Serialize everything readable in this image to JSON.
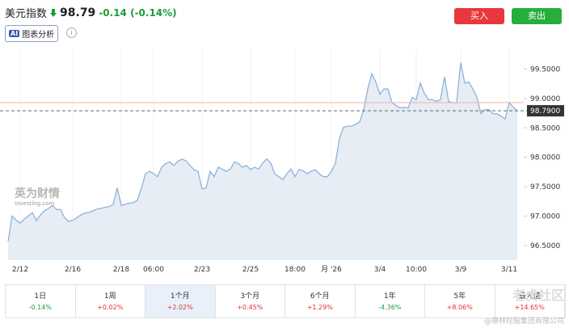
{
  "header": {
    "name": "美元指数",
    "price": "98.79",
    "change": "-0.14 (-0.14%)",
    "buy": "买入",
    "sell": "卖出",
    "ai": "AI",
    "ai_label": "图表分析",
    "info": "i"
  },
  "chart_data": {
    "type": "line",
    "values": [
      96.57,
      97.0,
      96.93,
      96.88,
      96.95,
      97.0,
      97.06,
      96.92,
      97.02,
      97.09,
      97.13,
      97.18,
      97.11,
      97.11,
      96.97,
      96.91,
      96.93,
      96.97,
      97.02,
      97.05,
      97.06,
      97.09,
      97.12,
      97.13,
      97.15,
      97.16,
      97.2,
      97.48,
      97.18,
      97.2,
      97.22,
      97.23,
      97.27,
      97.48,
      97.72,
      97.76,
      97.72,
      97.67,
      97.83,
      97.89,
      97.92,
      97.86,
      97.93,
      97.97,
      97.94,
      97.86,
      97.79,
      97.76,
      97.46,
      97.48,
      97.76,
      97.67,
      97.83,
      97.8,
      97.76,
      97.8,
      97.92,
      97.89,
      97.83,
      97.86,
      97.79,
      97.83,
      97.8,
      97.9,
      97.97,
      97.9,
      97.72,
      97.67,
      97.62,
      97.72,
      97.8,
      97.67,
      97.79,
      97.77,
      97.72,
      97.76,
      97.79,
      97.72,
      97.67,
      97.67,
      97.76,
      97.9,
      98.32,
      98.51,
      98.53,
      98.53,
      98.56,
      98.6,
      98.81,
      99.16,
      99.42,
      99.28,
      99.07,
      99.16,
      99.16,
      98.93,
      98.88,
      98.84,
      98.85,
      98.84,
      99.02,
      98.98,
      99.26,
      99.09,
      98.98,
      98.98,
      98.95,
      98.98,
      99.37,
      98.95,
      98.93,
      98.93,
      99.61,
      99.26,
      99.28,
      99.16,
      99.02,
      98.74,
      98.81,
      98.81,
      98.74,
      98.74,
      98.7,
      98.65,
      98.93,
      98.85,
      98.79
    ],
    "color": "#8fb3d9",
    "fill": "#e6edf5",
    "xlim": [
      0,
      127
    ],
    "xticks": [
      {
        "value": 3,
        "label": "2/12"
      },
      {
        "value": 16,
        "label": "2/16"
      },
      {
        "value": 28,
        "label": "2/18"
      },
      {
        "value": 36,
        "label": "06:00"
      },
      {
        "value": 48,
        "label": "2/23"
      },
      {
        "value": 60,
        "label": "2/25"
      },
      {
        "value": 71,
        "label": "18:00"
      },
      {
        "value": 80,
        "label": "月 '26"
      },
      {
        "value": 92,
        "label": "3/4"
      },
      {
        "value": 101,
        "label": "10:00"
      },
      {
        "value": 112,
        "label": "3/9"
      },
      {
        "value": 124,
        "label": "3/11"
      }
    ],
    "ylim": [
      96.25,
      99.85
    ],
    "yticks": [
      {
        "value": 96.5,
        "label": "96.5000"
      },
      {
        "value": 97,
        "label": "97.0000"
      },
      {
        "value": 97.5,
        "label": "97.5000"
      },
      {
        "value": 98,
        "label": "98.0000"
      },
      {
        "value": 98.5,
        "label": "98.5000"
      },
      {
        "value": 99,
        "label": "99.0000"
      },
      {
        "value": 99.5,
        "label": "99.5000"
      }
    ],
    "last_price": {
      "value": 98.79,
      "label": "98.7900"
    },
    "prev_close": 98.93,
    "watermark": "英为财情",
    "watermark_sub": "Investing.com"
  },
  "periods": [
    {
      "label": "1日",
      "change": "-0.14%"
    },
    {
      "label": "1周",
      "change": "+0.02%"
    },
    {
      "label": "1个月",
      "change": "+2.02%"
    },
    {
      "label": "3个月",
      "change": "+0.45%"
    },
    {
      "label": "6个月",
      "change": "+1.29%"
    },
    {
      "label": "1年",
      "change": "-4.36%"
    },
    {
      "label": "5年",
      "change": "+8.06%"
    },
    {
      "label": "最大值",
      "change": "+14.65%"
    }
  ],
  "selected_period": 2,
  "footer": {
    "community": "老虎社区",
    "source": "@德林控股集团有限公司"
  }
}
